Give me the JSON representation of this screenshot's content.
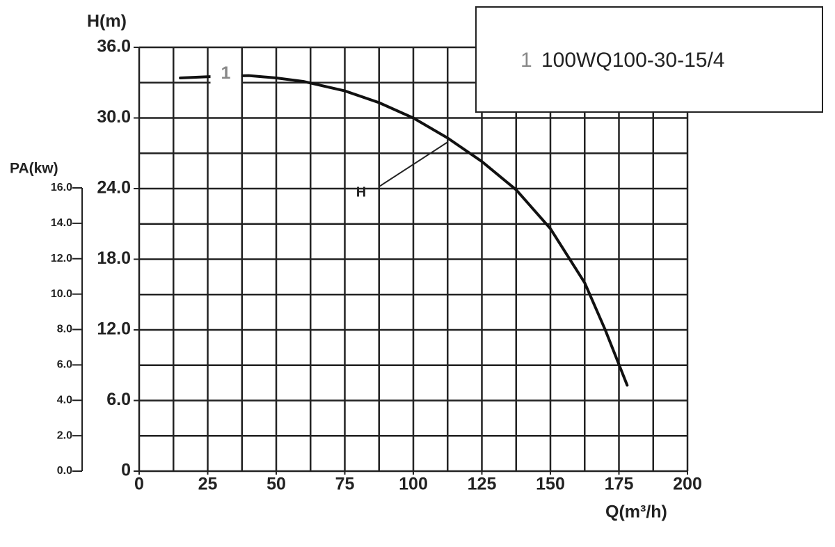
{
  "chart_data": {
    "type": "line",
    "ylabel": "H(m)",
    "y2label": "PA(kw)",
    "xlabel": "Q(m³/h)",
    "xlim": [
      0,
      200
    ],
    "xticks": [
      0,
      25,
      50,
      75,
      100,
      125,
      150,
      175,
      200
    ],
    "xgrid": [
      0,
      12.5,
      25,
      37.5,
      50,
      62.5,
      75,
      87.5,
      100,
      112.5,
      125,
      137.5,
      150,
      162.5,
      175,
      187.5,
      200
    ],
    "ylim": [
      0,
      36
    ],
    "yticks": [
      {
        "value": 0,
        "label": "0"
      },
      {
        "value": 6,
        "label": "6.0"
      },
      {
        "value": 12,
        "label": "12.0"
      },
      {
        "value": 18,
        "label": "18.0"
      },
      {
        "value": 24,
        "label": "24.0"
      },
      {
        "value": 30,
        "label": "30.0"
      },
      {
        "value": 36,
        "label": "36.0"
      }
    ],
    "ygrid": [
      0,
      3,
      6,
      9,
      12,
      15,
      18,
      21,
      24,
      27,
      30,
      33,
      36
    ],
    "y2lim": [
      0,
      16
    ],
    "y2ticks": [
      {
        "value": 0,
        "label": "0.0"
      },
      {
        "value": 2,
        "label": "2.0"
      },
      {
        "value": 4,
        "label": "4.0"
      },
      {
        "value": 6,
        "label": "6.0"
      },
      {
        "value": 8,
        "label": "8.0"
      },
      {
        "value": 10,
        "label": "10.0"
      },
      {
        "value": 12,
        "label": "12.0"
      },
      {
        "value": 14,
        "label": "14.0"
      },
      {
        "value": 16,
        "label": "16.0"
      }
    ],
    "grid": true,
    "series": [
      {
        "name": "H",
        "curve_label": "1",
        "color": "#111111",
        "x": [
          15,
          25,
          40,
          50,
          60,
          75,
          87.5,
          100,
          112.5,
          125,
          137.5,
          150,
          162.5,
          170,
          178
        ],
        "values": [
          33.4,
          33.5,
          33.6,
          33.4,
          33.1,
          32.3,
          31.3,
          30.0,
          28.3,
          26.3,
          23.9,
          20.6,
          16.0,
          12.0,
          7.3
        ]
      }
    ],
    "legend": {
      "number": "1",
      "text": "100WQ100-30-15/4",
      "position": "upper right"
    }
  }
}
